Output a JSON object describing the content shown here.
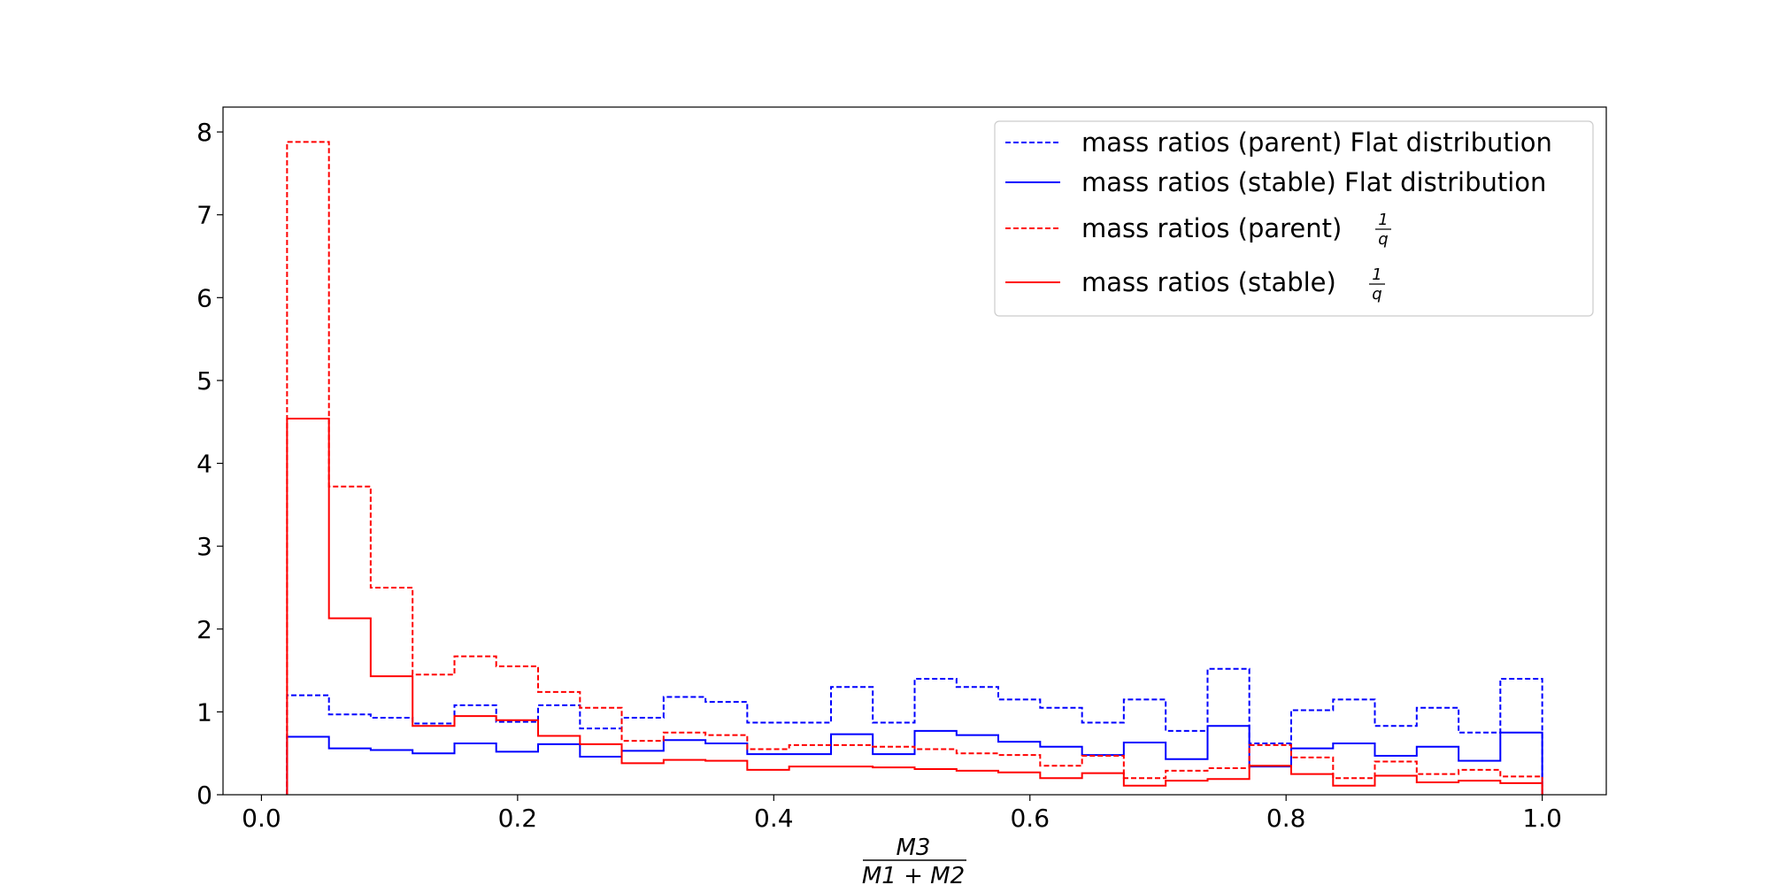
{
  "chart_data": {
    "type": "histogram-step",
    "xlabel": {
      "numerator": "M3",
      "denominator": "M1 + M2"
    },
    "xlim": [
      -0.03,
      1.05
    ],
    "ylim": [
      0,
      8.3
    ],
    "xticks": [
      0.0,
      0.2,
      0.4,
      0.6,
      0.8,
      1.0
    ],
    "xtick_labels": [
      "0.0",
      "0.2",
      "0.4",
      "0.6",
      "0.8",
      "1.0"
    ],
    "yticks": [
      0,
      1,
      2,
      3,
      4,
      5,
      6,
      7,
      8
    ],
    "ytick_labels": [
      "0",
      "1",
      "2",
      "3",
      "4",
      "5",
      "6",
      "7",
      "8"
    ],
    "bin_edges": [
      0.02,
      0.0527,
      0.0853,
      0.118,
      0.1507,
      0.1833,
      0.216,
      0.2487,
      0.2813,
      0.314,
      0.3467,
      0.3793,
      0.412,
      0.4447,
      0.4773,
      0.51,
      0.5427,
      0.5753,
      0.608,
      0.6407,
      0.6733,
      0.706,
      0.7387,
      0.7713,
      0.804,
      0.8367,
      0.8693,
      0.902,
      0.9347,
      0.9673,
      1.0
    ],
    "legend_position": "upper right",
    "series": [
      {
        "name": "mass ratios (parent) Flat distribution",
        "legend_text": "mass ratios (parent) Flat distribution",
        "color": "#0000ff",
        "linestyle": "dashed",
        "values": [
          1.2,
          0.97,
          0.93,
          0.86,
          1.08,
          0.88,
          1.08,
          0.8,
          0.93,
          1.18,
          1.12,
          0.87,
          0.87,
          1.3,
          0.87,
          1.4,
          1.3,
          1.15,
          1.05,
          0.87,
          1.15,
          0.77,
          1.52,
          0.62,
          1.02,
          1.15,
          0.83,
          1.05,
          0.75,
          1.4
        ]
      },
      {
        "name": "mass ratios (stable) Flat distribution",
        "legend_text": "mass ratios (stable) Flat distribution",
        "color": "#0000ff",
        "linestyle": "solid",
        "values": [
          0.7,
          0.56,
          0.54,
          0.5,
          0.62,
          0.52,
          0.61,
          0.46,
          0.53,
          0.66,
          0.62,
          0.49,
          0.49,
          0.73,
          0.49,
          0.77,
          0.72,
          0.64,
          0.58,
          0.48,
          0.63,
          0.43,
          0.83,
          0.34,
          0.56,
          0.62,
          0.47,
          0.58,
          0.41,
          0.75
        ]
      },
      {
        "name": "mass ratios (parent) 1/q",
        "legend_text": "mass ratios (parent)",
        "legend_frac": {
          "numerator": "1",
          "denominator": "q"
        },
        "color": "#ff0000",
        "linestyle": "dashed",
        "values": [
          7.88,
          3.72,
          2.5,
          1.45,
          1.67,
          1.55,
          1.24,
          1.05,
          0.65,
          0.75,
          0.72,
          0.55,
          0.6,
          0.6,
          0.58,
          0.55,
          0.5,
          0.48,
          0.35,
          0.47,
          0.2,
          0.29,
          0.32,
          0.6,
          0.45,
          0.2,
          0.4,
          0.25,
          0.3,
          0.22
        ]
      },
      {
        "name": "mass ratios (stable) 1/q",
        "legend_text": "mass ratios (stable)",
        "legend_frac": {
          "numerator": "1",
          "denominator": "q"
        },
        "color": "#ff0000",
        "linestyle": "solid",
        "values": [
          4.54,
          2.13,
          1.43,
          0.83,
          0.95,
          0.9,
          0.71,
          0.61,
          0.38,
          0.42,
          0.41,
          0.3,
          0.34,
          0.34,
          0.33,
          0.31,
          0.29,
          0.27,
          0.2,
          0.26,
          0.11,
          0.17,
          0.19,
          0.35,
          0.25,
          0.11,
          0.23,
          0.15,
          0.17,
          0.14
        ]
      }
    ]
  }
}
